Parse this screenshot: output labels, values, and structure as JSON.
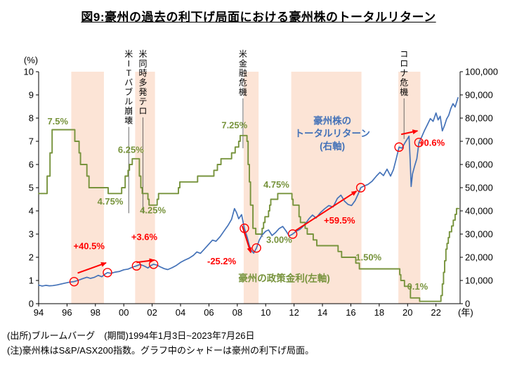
{
  "title": "図9:豪州の過去の利下げ局面における豪州株のトータルリターン",
  "footer": {
    "source": "(出所)ブルームバーグ　(期間)1994年1月3日~2023年7月26日",
    "note": "(注)豪州株はS&P/ASX200指数。グラフ中のシャドーは豪州の利下げ局面。"
  },
  "colors": {
    "green": "#77933C",
    "blue": "#4472B8",
    "red": "#FF0000",
    "band": "#FCE4D6",
    "axis": "#000000",
    "event_line": "#595959",
    "leader": "#7F7F7F"
  },
  "chart_data": {
    "type": "line",
    "title": "図9:豪州の過去の利下げ局面における豪州株のトータルリターン",
    "left_axis": {
      "title": "(%)",
      "min": 0,
      "max": 10,
      "step": 1
    },
    "right_axis": {
      "min": 0,
      "max": 100000,
      "step": 10000
    },
    "x_axis": {
      "min": 1994,
      "max": 2023.7,
      "suffix": "(年)",
      "ticks": [
        {
          "year": 1994,
          "label": "94"
        },
        {
          "year": 1996,
          "label": "96"
        },
        {
          "year": 1998,
          "label": "98"
        },
        {
          "year": 2000,
          "label": "00"
        },
        {
          "year": 2002,
          "label": "02"
        },
        {
          "year": 2004,
          "label": "04"
        },
        {
          "year": 2006,
          "label": "06"
        },
        {
          "year": 2008,
          "label": "08"
        },
        {
          "year": 2010,
          "label": "10"
        },
        {
          "year": 2012,
          "label": "12"
        },
        {
          "year": 2014,
          "label": "14"
        },
        {
          "year": 2016,
          "label": "16"
        },
        {
          "year": 2018,
          "label": "18"
        },
        {
          "year": 2020,
          "label": "20"
        },
        {
          "year": 2022,
          "label": "22"
        }
      ]
    },
    "bands": [
      [
        1996.3,
        1998.6
      ],
      [
        2000.8,
        2002.2
      ],
      [
        2008.45,
        2009.5
      ],
      [
        2011.8,
        2016.75
      ],
      [
        2019.35,
        2020.9
      ]
    ],
    "events": [
      {
        "label": "米ITバブル崩壊",
        "x": 2000.35,
        "line_to": 3.9
      },
      {
        "label": "米同時多発テロ",
        "x": 2001.35,
        "line_to": 3.9
      },
      {
        "label": "米金融危機",
        "x": 2008.4,
        "line_to": 6.7
      },
      {
        "label": "コロナ危機",
        "x": 2019.75,
        "line_to": 7.1
      }
    ],
    "series": [
      {
        "name": "豪州の政策金利(左軸)",
        "axis": "left",
        "style": "step",
        "color": "green",
        "points": [
          [
            1994.0,
            4.75
          ],
          [
            1994.6,
            5.5
          ],
          [
            1994.8,
            6.5
          ],
          [
            1994.95,
            7.5
          ],
          [
            1996.55,
            7.0
          ],
          [
            1996.85,
            6.5
          ],
          [
            1996.95,
            6.0
          ],
          [
            1997.4,
            5.5
          ],
          [
            1997.55,
            5.0
          ],
          [
            1998.9,
            4.75
          ],
          [
            1999.85,
            5.0
          ],
          [
            2000.1,
            5.5
          ],
          [
            2000.3,
            5.75
          ],
          [
            2000.4,
            6.0
          ],
          [
            2000.6,
            6.25
          ],
          [
            2001.1,
            5.5
          ],
          [
            2001.2,
            5.0
          ],
          [
            2001.3,
            4.75
          ],
          [
            2001.7,
            4.5
          ],
          [
            2001.78,
            4.25
          ],
          [
            2002.35,
            4.5
          ],
          [
            2002.45,
            4.75
          ],
          [
            2003.85,
            5.0
          ],
          [
            2003.95,
            5.25
          ],
          [
            2005.2,
            5.5
          ],
          [
            2006.35,
            5.75
          ],
          [
            2006.6,
            6.0
          ],
          [
            2006.85,
            6.25
          ],
          [
            2007.6,
            6.5
          ],
          [
            2007.85,
            6.75
          ],
          [
            2008.1,
            7.0
          ],
          [
            2008.2,
            7.25
          ],
          [
            2008.68,
            7.0
          ],
          [
            2008.76,
            6.0
          ],
          [
            2008.85,
            5.25
          ],
          [
            2008.93,
            4.25
          ],
          [
            2009.1,
            3.25
          ],
          [
            2009.3,
            3.0
          ],
          [
            2009.75,
            3.25
          ],
          [
            2009.85,
            3.5
          ],
          [
            2009.95,
            3.75
          ],
          [
            2010.2,
            4.0
          ],
          [
            2010.28,
            4.25
          ],
          [
            2010.36,
            4.5
          ],
          [
            2010.85,
            4.75
          ],
          [
            2011.85,
            4.5
          ],
          [
            2011.93,
            4.25
          ],
          [
            2012.35,
            3.75
          ],
          [
            2012.45,
            3.5
          ],
          [
            2012.78,
            3.25
          ],
          [
            2012.93,
            3.0
          ],
          [
            2013.35,
            2.75
          ],
          [
            2013.6,
            2.5
          ],
          [
            2015.1,
            2.25
          ],
          [
            2015.35,
            2.0
          ],
          [
            2016.35,
            1.75
          ],
          [
            2016.6,
            1.5
          ],
          [
            2019.45,
            1.25
          ],
          [
            2019.52,
            1.0
          ],
          [
            2019.78,
            0.75
          ],
          [
            2020.2,
            0.25
          ],
          [
            2020.85,
            0.1
          ],
          [
            2022.35,
            0.35
          ],
          [
            2022.45,
            0.85
          ],
          [
            2022.53,
            1.35
          ],
          [
            2022.61,
            1.85
          ],
          [
            2022.7,
            2.35
          ],
          [
            2022.78,
            2.6
          ],
          [
            2022.87,
            2.85
          ],
          [
            2022.95,
            3.1
          ],
          [
            2023.1,
            3.35
          ],
          [
            2023.22,
            3.6
          ],
          [
            2023.35,
            3.85
          ],
          [
            2023.45,
            4.1
          ],
          [
            2023.6,
            4.1
          ]
        ]
      },
      {
        "name": "豪州株のトータルリターン(右軸)",
        "axis": "right",
        "style": "line",
        "color": "blue",
        "points": [
          [
            1994.0,
            8000
          ],
          [
            1994.25,
            7600
          ],
          [
            1994.5,
            7900
          ],
          [
            1994.75,
            7700
          ],
          [
            1995.0,
            7800
          ],
          [
            1995.3,
            8100
          ],
          [
            1995.6,
            8500
          ],
          [
            1995.9,
            8900
          ],
          [
            1996.2,
            9300
          ],
          [
            1996.5,
            9500
          ],
          [
            1996.8,
            10100
          ],
          [
            1997.1,
            10800
          ],
          [
            1997.4,
            11400
          ],
          [
            1997.65,
            10900
          ],
          [
            1997.9,
            11300
          ],
          [
            1998.2,
            12200
          ],
          [
            1998.45,
            11600
          ],
          [
            1998.65,
            12600
          ],
          [
            1998.85,
            13400
          ],
          [
            1999.1,
            13100
          ],
          [
            1999.4,
            13600
          ],
          [
            1999.7,
            13900
          ],
          [
            2000.0,
            14600
          ],
          [
            2000.3,
            14900
          ],
          [
            2000.6,
            15700
          ],
          [
            2000.9,
            16300
          ],
          [
            2001.15,
            16900
          ],
          [
            2001.45,
            16200
          ],
          [
            2001.7,
            15400
          ],
          [
            2001.9,
            16400
          ],
          [
            2002.1,
            17000
          ],
          [
            2002.35,
            16600
          ],
          [
            2002.6,
            15800
          ],
          [
            2002.85,
            15100
          ],
          [
            2003.1,
            14700
          ],
          [
            2003.4,
            15500
          ],
          [
            2003.7,
            16500
          ],
          [
            2004.0,
            17800
          ],
          [
            2004.3,
            18800
          ],
          [
            2004.6,
            19600
          ],
          [
            2004.9,
            20800
          ],
          [
            2005.15,
            22300
          ],
          [
            2005.4,
            21700
          ],
          [
            2005.7,
            23700
          ],
          [
            2006.0,
            25700
          ],
          [
            2006.25,
            27400
          ],
          [
            2006.5,
            26900
          ],
          [
            2006.8,
            29000
          ],
          [
            2007.1,
            31600
          ],
          [
            2007.35,
            33800
          ],
          [
            2007.6,
            36400
          ],
          [
            2007.8,
            41000
          ],
          [
            2007.95,
            39200
          ],
          [
            2008.1,
            36600
          ],
          [
            2008.3,
            38400
          ],
          [
            2008.5,
            32500
          ],
          [
            2008.7,
            28500
          ],
          [
            2008.85,
            25000
          ],
          [
            2009.0,
            22800
          ],
          [
            2009.15,
            21800
          ],
          [
            2009.35,
            24000
          ],
          [
            2009.55,
            27400
          ],
          [
            2009.75,
            29600
          ],
          [
            2010.0,
            31200
          ],
          [
            2010.2,
            31800
          ],
          [
            2010.45,
            29400
          ],
          [
            2010.7,
            30700
          ],
          [
            2010.95,
            32400
          ],
          [
            2011.2,
            33300
          ],
          [
            2011.45,
            31200
          ],
          [
            2011.65,
            29200
          ],
          [
            2011.9,
            30000
          ],
          [
            2012.15,
            31200
          ],
          [
            2012.45,
            32200
          ],
          [
            2012.75,
            34000
          ],
          [
            2013.05,
            36600
          ],
          [
            2013.3,
            38200
          ],
          [
            2013.55,
            36900
          ],
          [
            2013.85,
            39200
          ],
          [
            2014.15,
            40900
          ],
          [
            2014.45,
            42300
          ],
          [
            2014.75,
            41700
          ],
          [
            2015.05,
            45400
          ],
          [
            2015.3,
            46800
          ],
          [
            2015.55,
            44200
          ],
          [
            2015.8,
            42800
          ],
          [
            2016.05,
            42300
          ],
          [
            2016.3,
            44400
          ],
          [
            2016.5,
            47000
          ],
          [
            2016.7,
            50000
          ],
          [
            2016.95,
            50800
          ],
          [
            2017.2,
            51400
          ],
          [
            2017.5,
            52800
          ],
          [
            2017.8,
            55000
          ],
          [
            2018.05,
            56600
          ],
          [
            2018.3,
            55200
          ],
          [
            2018.55,
            58000
          ],
          [
            2018.8,
            55000
          ],
          [
            2019.0,
            57800
          ],
          [
            2019.2,
            62500
          ],
          [
            2019.4,
            67500
          ],
          [
            2019.6,
            67000
          ],
          [
            2019.8,
            69200
          ],
          [
            2020.0,
            71200
          ],
          [
            2020.1,
            72200
          ],
          [
            2020.18,
            62000
          ],
          [
            2020.25,
            50500
          ],
          [
            2020.35,
            56000
          ],
          [
            2020.5,
            59500
          ],
          [
            2020.65,
            62500
          ],
          [
            2020.8,
            69500
          ],
          [
            2021.0,
            72000
          ],
          [
            2021.2,
            74800
          ],
          [
            2021.4,
            77200
          ],
          [
            2021.6,
            79800
          ],
          [
            2021.8,
            78600
          ],
          [
            2022.0,
            82200
          ],
          [
            2022.15,
            79200
          ],
          [
            2022.3,
            80800
          ],
          [
            2022.45,
            74500
          ],
          [
            2022.6,
            76800
          ],
          [
            2022.75,
            79600
          ],
          [
            2022.9,
            81200
          ],
          [
            2023.05,
            84200
          ],
          [
            2023.2,
            86200
          ],
          [
            2023.35,
            84800
          ],
          [
            2023.55,
            88800
          ]
        ]
      }
    ],
    "rate_labels": [
      {
        "text": "7.5%",
        "x": 1995.35,
        "y": 7.85
      },
      {
        "text": "4.75%",
        "x": 1999.05,
        "y": 4.4
      },
      {
        "text": "6.25%",
        "x": 2000.5,
        "y": 6.62
      },
      {
        "text": "4.25%",
        "x": 2002.05,
        "y": 4.02
      },
      {
        "text": "7.25%",
        "x": 2007.8,
        "y": 7.68
      },
      {
        "text": "4.75%",
        "x": 2010.75,
        "y": 5.12
      },
      {
        "text": "3.00%",
        "x": 2010.95,
        "y": 2.75,
        "leader": [
          2009.6,
          3.02
        ]
      },
      {
        "text": "1.50%",
        "x": 2017.25,
        "y": 1.98
      },
      {
        "text": "0.1%",
        "x": 2020.7,
        "y": 0.73
      }
    ],
    "circles": [
      [
        1996.5,
        9500
      ],
      [
        1998.85,
        13400
      ],
      [
        2000.9,
        16300
      ],
      [
        2002.1,
        17000
      ],
      [
        2008.5,
        32500
      ],
      [
        2009.35,
        24000
      ],
      [
        2011.9,
        30000
      ],
      [
        2016.7,
        50000
      ],
      [
        2019.4,
        67500
      ],
      [
        2020.8,
        69500
      ]
    ],
    "arrows": [
      {
        "label": "+40.5%",
        "from": [
          1996.75,
          13200
        ],
        "to": [
          1998.75,
          17600
        ],
        "label_at": [
          1997.55,
          23500
        ]
      },
      {
        "label": "+3.6%",
        "from": [
          2000.9,
          17800
        ],
        "to": [
          2002.15,
          18800
        ],
        "label_at": [
          2001.45,
          27500
        ]
      },
      {
        "label": "-25.2%",
        "from": [
          2008.35,
          33500
        ],
        "to": [
          2008.95,
          22000
        ],
        "label_at": [
          2006.9,
          17000
        ]
      },
      {
        "label": "+59.5%",
        "from": [
          2012.1,
          31500
        ],
        "to": [
          2016.4,
          48500
        ],
        "label_at": [
          2015.2,
          34500
        ]
      },
      {
        "label": "+0.6%",
        "from": [
          2019.55,
          73000
        ],
        "to": [
          2020.7,
          74500
        ],
        "label_at": [
          2021.7,
          68000
        ]
      }
    ],
    "series_labels": [
      {
        "lines": [
          "豪州株の",
          "トータルリターン",
          "(右軸)"
        ],
        "color": "blue",
        "x": 2014.7,
        "y_top": 7.75
      },
      {
        "lines": [
          "豪州の政策金利(左軸)"
        ],
        "color": "green",
        "x": 2011.3,
        "y_top": 0.95
      }
    ]
  }
}
